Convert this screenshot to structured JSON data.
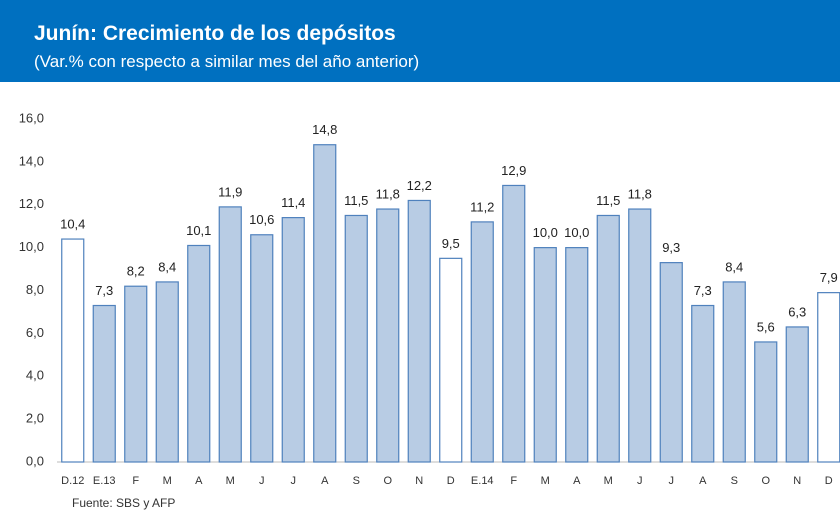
{
  "chart_data": {
    "type": "bar",
    "title": "Junín: Crecimiento de los depósitos",
    "subtitle": "(Var.% con respecto a similar mes del año anterior)",
    "categories": [
      "D.12",
      "E.13",
      "F",
      "M",
      "A",
      "M",
      "J",
      "J",
      "A",
      "S",
      "O",
      "N",
      "D",
      "E.14",
      "F",
      "M",
      "A",
      "M",
      "J",
      "J",
      "A",
      "S",
      "O",
      "N",
      "D"
    ],
    "values": [
      10.4,
      7.3,
      8.2,
      8.4,
      10.1,
      11.9,
      10.6,
      11.4,
      14.8,
      11.5,
      11.8,
      12.2,
      9.5,
      11.2,
      12.9,
      10.0,
      10.0,
      11.5,
      11.8,
      9.3,
      7.3,
      8.4,
      5.6,
      6.3,
      7.9
    ],
    "value_labels": [
      "10,4",
      "7,3",
      "8,2",
      "8,4",
      "10,1",
      "11,9",
      "10,6",
      "11,4",
      "14,8",
      "11,5",
      "11,8",
      "12,2",
      "9,5",
      "11,2",
      "12,9",
      "10,0",
      "10,0",
      "11,5",
      "11,8",
      "9,3",
      "7,3",
      "8,4",
      "5,6",
      "6,3",
      "7,9"
    ],
    "colors": [
      "#ffffff",
      "#b8cce4",
      "#b8cce4",
      "#b8cce4",
      "#b8cce4",
      "#b8cce4",
      "#b8cce4",
      "#b8cce4",
      "#b8cce4",
      "#b8cce4",
      "#b8cce4",
      "#b8cce4",
      "#ffffff",
      "#b8cce4",
      "#b8cce4",
      "#b8cce4",
      "#b8cce4",
      "#b8cce4",
      "#b8cce4",
      "#b8cce4",
      "#b8cce4",
      "#b8cce4",
      "#b8cce4",
      "#b8cce4",
      "#ffffff"
    ],
    "edge_color": "#4f81bd",
    "ylim": [
      0,
      16
    ],
    "yticks": [
      {
        "value": 0,
        "label": "0,0"
      },
      {
        "value": 2,
        "label": "2,0"
      },
      {
        "value": 4,
        "label": "4,0"
      },
      {
        "value": 6,
        "label": "6,0"
      },
      {
        "value": 8,
        "label": "8,0"
      },
      {
        "value": 10,
        "label": "10,0"
      },
      {
        "value": 12,
        "label": "12,0"
      },
      {
        "value": 14,
        "label": "14,0"
      },
      {
        "value": 16,
        "label": "16,0"
      }
    ],
    "grid": false,
    "source": "Fuente: SBS y AFP"
  }
}
